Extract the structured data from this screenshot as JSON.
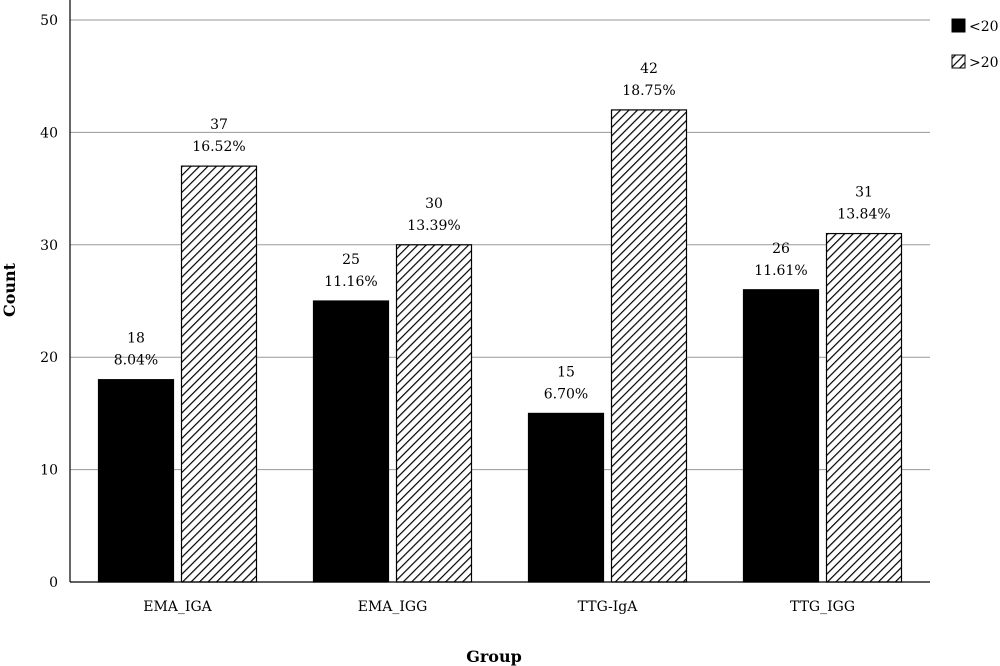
{
  "chart_data": {
    "type": "bar",
    "xlabel": "Group",
    "ylabel": "Count",
    "categories": [
      "EMA_IGA",
      "EMA_IGG",
      "TTG-IgA",
      "TTG_IGG"
    ],
    "ylim": [
      0,
      50
    ],
    "yticks": [
      "0",
      "10",
      "20",
      "30",
      "40",
      "50"
    ],
    "grid": true,
    "legend_position": "top-right",
    "series": [
      {
        "name": "<20",
        "fill": "solid",
        "color": "#000000",
        "values": [
          18,
          25,
          15,
          26
        ],
        "percent_labels": [
          "8.04%",
          "11.16%",
          "6.70%",
          "11.61%"
        ]
      },
      {
        "name": ">20",
        "fill": "hatched",
        "color": "#000000",
        "values": [
          37,
          30,
          42,
          31
        ],
        "percent_labels": [
          "16.52%",
          "13.39%",
          "18.75%",
          "13.84%"
        ]
      }
    ]
  }
}
